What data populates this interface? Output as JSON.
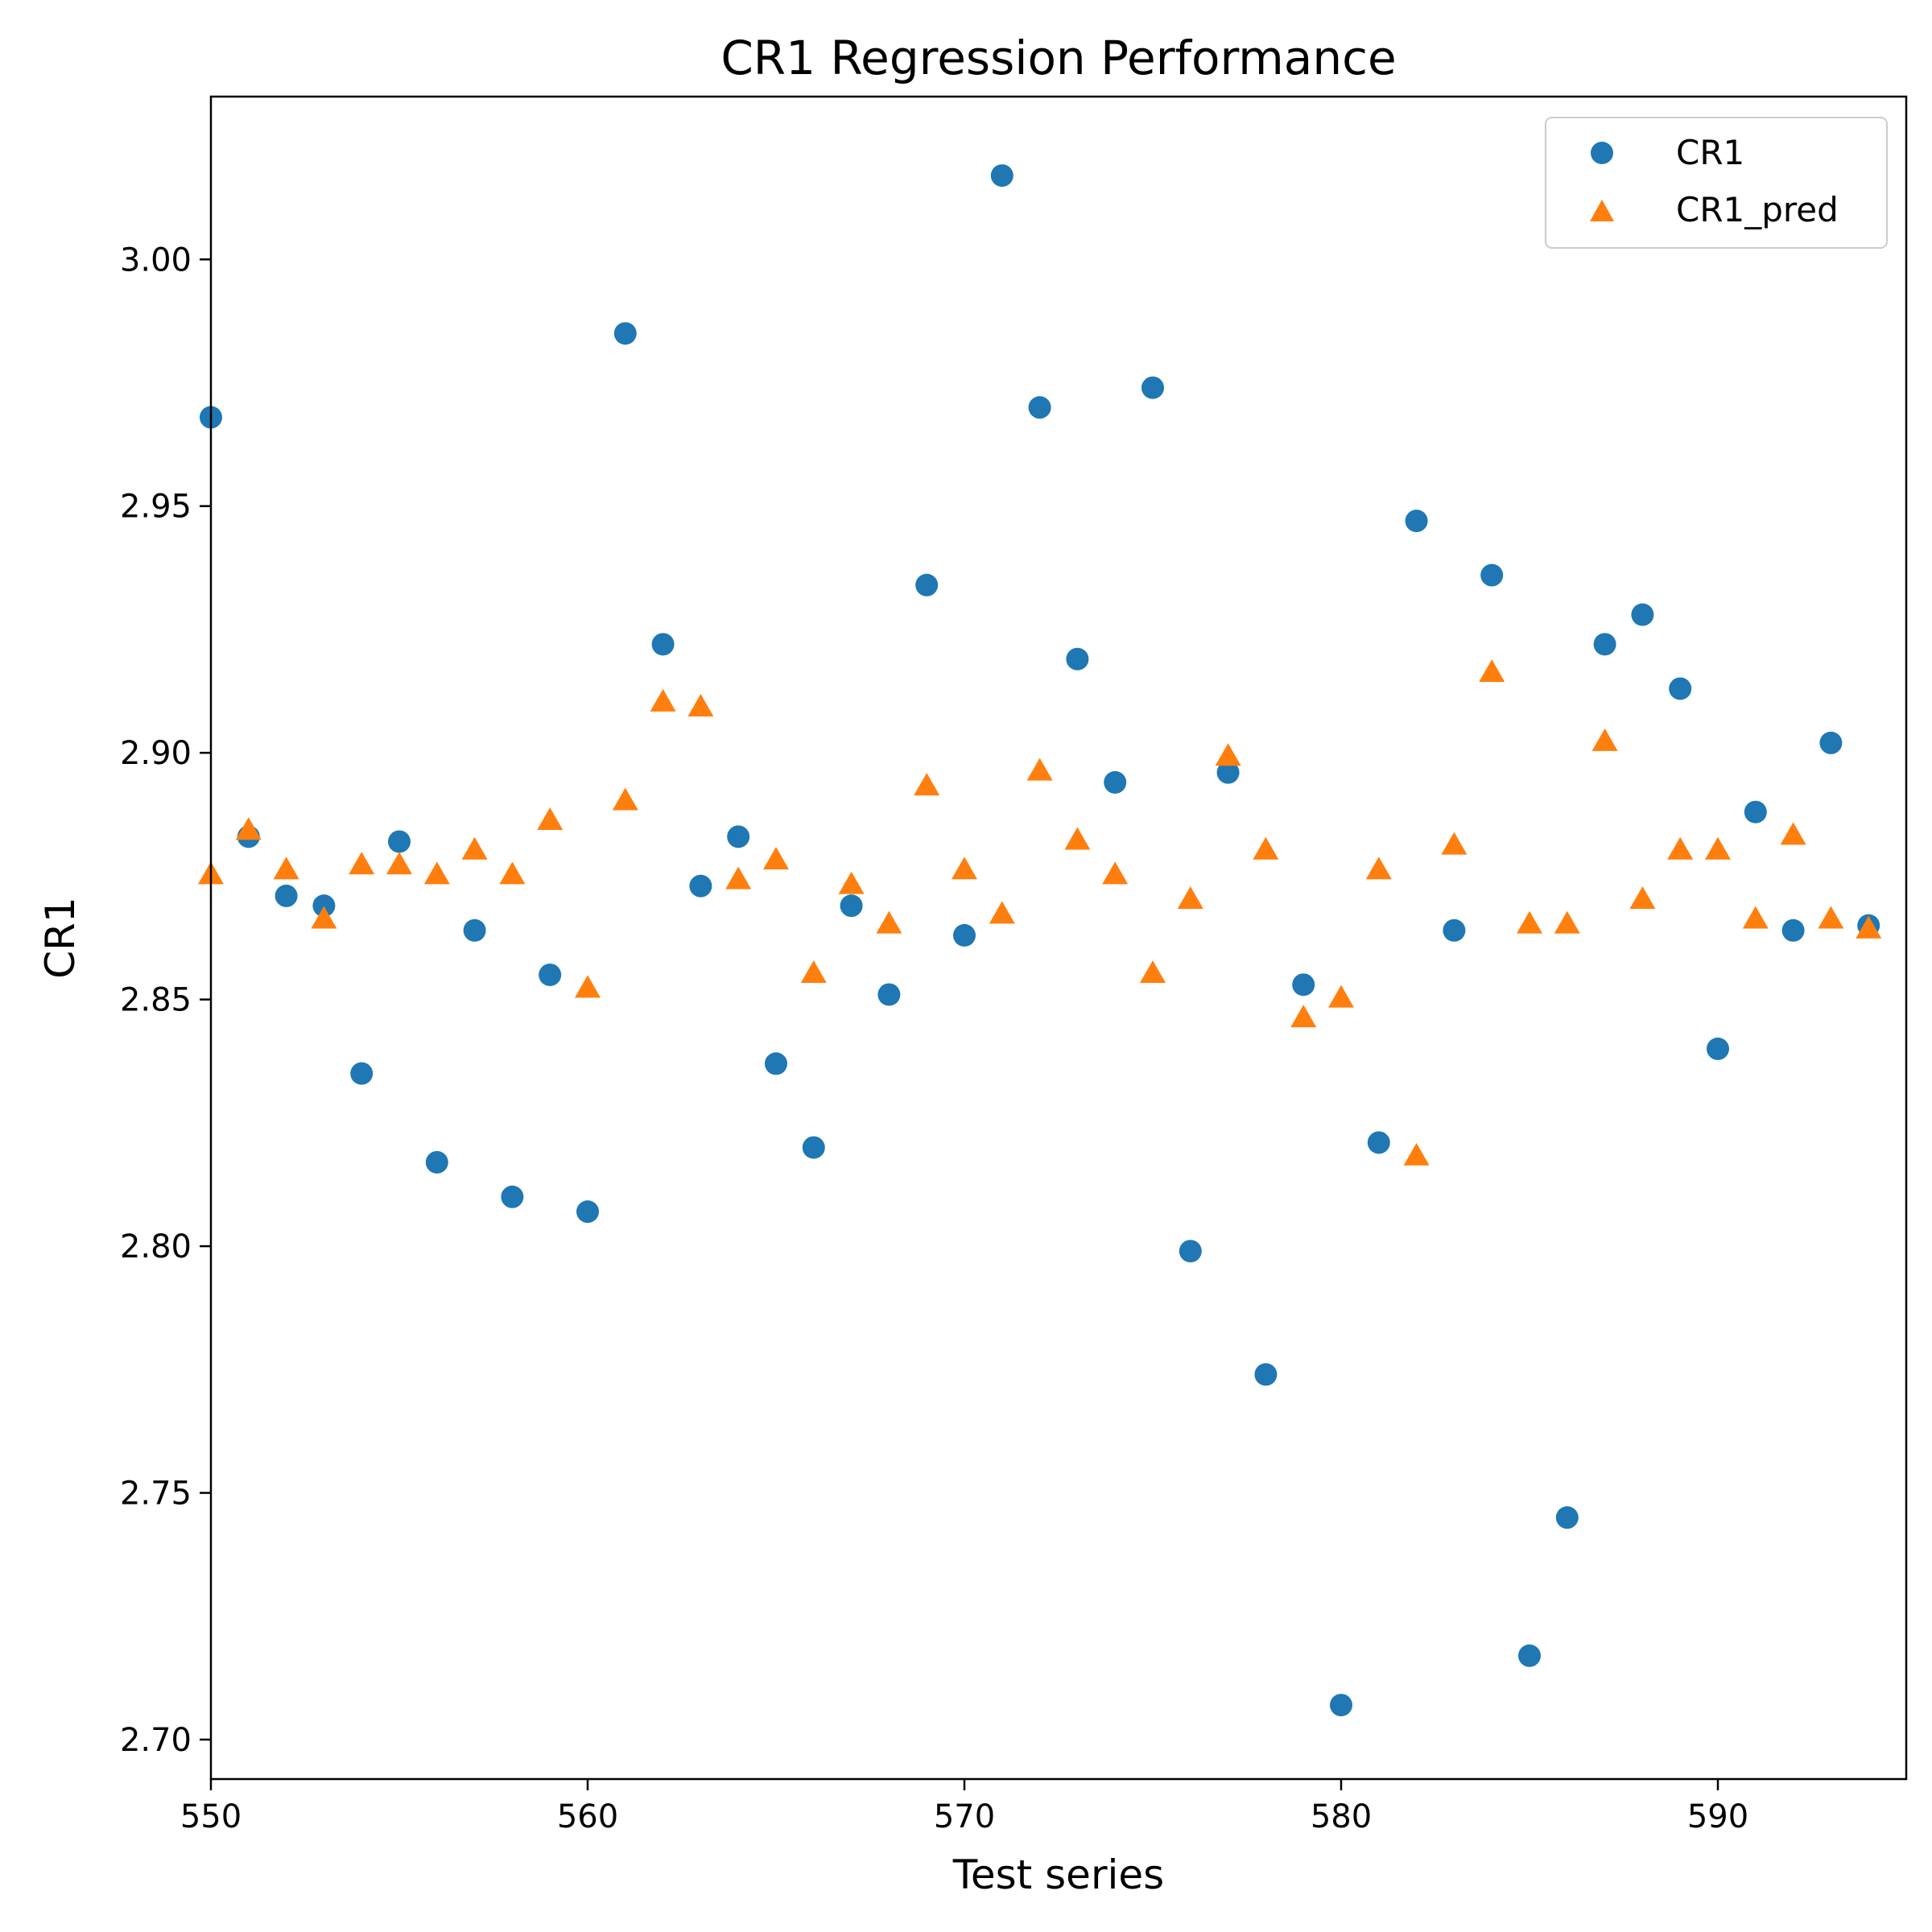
{
  "chart_data": {
    "type": "scatter",
    "title": "CR1 Regression Performance",
    "xlabel": "Test series",
    "ylabel": "CR1",
    "xlim": [
      550,
      595
    ],
    "ylim": [
      2.692,
      3.033
    ],
    "xticks": [
      550,
      560,
      570,
      580,
      590
    ],
    "yticks": [
      2.7,
      2.75,
      2.8,
      2.85,
      2.9,
      2.95,
      3.0
    ],
    "xtick_labels": [
      "550",
      "560",
      "570",
      "580",
      "590"
    ],
    "ytick_labels": [
      "2.70",
      "2.75",
      "2.80",
      "2.85",
      "2.90",
      "2.95",
      "3.00"
    ],
    "grid": false,
    "legend_position": "top-right",
    "x": [
      550,
      551,
      552,
      553,
      554,
      555,
      556,
      557,
      558,
      559,
      560,
      561,
      562,
      563,
      564,
      565,
      566,
      567,
      568,
      569,
      570,
      571,
      572,
      573,
      574,
      575,
      576,
      577,
      578,
      579,
      580,
      581,
      582,
      583,
      584,
      585,
      586,
      587,
      588,
      589,
      590,
      591,
      592,
      593,
      594
    ],
    "series": [
      {
        "name": "CR1",
        "marker": "circle",
        "color": "#1f77b4",
        "values": [
          2.968,
          2.883,
          2.871,
          2.869,
          2.835,
          2.882,
          2.817,
          2.864,
          2.81,
          2.855,
          2.807,
          2.985,
          2.922,
          2.873,
          2.883,
          2.837,
          2.82,
          2.869,
          2.851,
          2.934,
          2.863,
          3.017,
          2.97,
          2.919,
          2.894,
          2.974,
          2.799,
          2.896,
          2.774,
          2.853,
          2.707,
          2.821,
          2.947,
          2.864,
          2.936,
          2.717,
          2.745,
          2.922,
          2.928,
          2.913,
          2.84,
          2.888,
          2.864,
          2.902,
          2.865
        ]
      },
      {
        "name": "CR1_pred",
        "marker": "triangle",
        "color": "#ff7f0e",
        "values": [
          2.875,
          2.884,
          2.876,
          2.866,
          2.877,
          2.877,
          2.875,
          2.88,
          2.875,
          2.886,
          2.852,
          2.89,
          2.91,
          2.909,
          2.874,
          2.878,
          2.855,
          2.873,
          2.865,
          2.893,
          2.876,
          2.867,
          2.896,
          2.882,
          2.875,
          2.855,
          2.87,
          2.899,
          2.88,
          2.846,
          2.85,
          2.876,
          2.818,
          2.881,
          2.916,
          2.865,
          2.865,
          2.902,
          2.87,
          2.88,
          2.88,
          2.866,
          2.883,
          2.866,
          2.864
        ]
      }
    ]
  }
}
